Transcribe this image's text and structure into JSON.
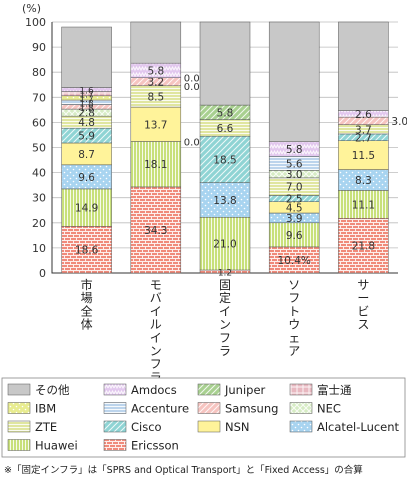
{
  "chart_data": {
    "type": "bar",
    "stacked": true,
    "ylabel": "(%)",
    "ylim": [
      0,
      100
    ],
    "yticks": [
      0,
      10,
      20,
      30,
      40,
      50,
      60,
      70,
      80,
      90,
      100
    ],
    "grid": true,
    "legend_position": "bottom",
    "categories": [
      "市場全体",
      "モバイルインフラ",
      "固定インフラ",
      "ソフトウェア",
      "サービス"
    ],
    "series": [
      {
        "name": "Ericsson",
        "color": "#f08a7a",
        "pattern": "brick",
        "values": [
          18.6,
          34.3,
          1.2,
          10.4,
          21.8
        ],
        "labels": [
          "18.6",
          "34.3",
          "1.2",
          "10.4%",
          "21.8"
        ]
      },
      {
        "name": "Huawei",
        "color": "#c8e07a",
        "pattern": "vlines",
        "values": [
          14.9,
          18.1,
          21.0,
          9.6,
          11.1
        ],
        "labels": [
          "14.9",
          "18.1",
          "21.0",
          "9.6",
          "11.1"
        ]
      },
      {
        "name": "Alcatel-Lucent",
        "color": "#a8d4f0",
        "pattern": "dots",
        "values": [
          9.6,
          0,
          13.8,
          3.9,
          8.3
        ],
        "labels": [
          "9.6",
          "0.0",
          "13.8",
          "3.9",
          "8.3"
        ]
      },
      {
        "name": "NSN",
        "color": "#fff39a",
        "pattern": "solid",
        "values": [
          8.7,
          13.7,
          0,
          4.5,
          11.5
        ],
        "labels": [
          "8.7",
          "13.7",
          "",
          "4.5",
          "11.5"
        ]
      },
      {
        "name": "Cisco",
        "color": "#8fd4d4",
        "pattern": "diag",
        "values": [
          5.9,
          0,
          18.5,
          2.5,
          2.7
        ],
        "labels": [
          "5.9",
          "",
          "18.5",
          "2.5",
          "2.7"
        ]
      },
      {
        "name": "ZTE",
        "color": "#e0e6a0",
        "pattern": "hlines",
        "values": [
          4.8,
          8.5,
          6.6,
          7.0,
          3.7
        ],
        "labels": [
          "4.8",
          "8.5",
          "6.6",
          "7.0",
          "3.7"
        ]
      },
      {
        "name": "NEC",
        "color": "#d6ecc4",
        "pattern": "lattice",
        "values": [
          2.8,
          0,
          0,
          3.0,
          0
        ],
        "labels": [
          "2.8",
          "0.0",
          "",
          "3.0",
          ""
        ]
      },
      {
        "name": "Samsung",
        "color": "#f6c4c0",
        "pattern": "diag",
        "values": [
          1.8,
          3.2,
          0,
          0,
          3.0
        ],
        "labels": [
          "1.8",
          "3.2",
          "",
          "",
          "3.0"
        ]
      },
      {
        "name": "Accenture",
        "color": "#bcd4ec",
        "pattern": "hlines",
        "values": [
          1.8,
          0,
          0,
          5.6,
          0
        ],
        "labels": [
          "1.8",
          "",
          "",
          "5.6",
          ""
        ]
      },
      {
        "name": "IBM",
        "color": "#e8ec90",
        "pattern": "dots",
        "values": [
          1.7,
          0,
          0,
          0,
          0
        ],
        "labels": [
          "1.7",
          "",
          "",
          "",
          ""
        ]
      },
      {
        "name": "富士通",
        "color": "#e8b8c0",
        "pattern": "grid",
        "values": [
          1.7,
          0,
          0,
          0,
          0
        ],
        "labels": [
          "1.7",
          "",
          "",
          "",
          ""
        ]
      },
      {
        "name": "Juniper",
        "color": "#a8d090",
        "pattern": "diag",
        "values": [
          0,
          0,
          5.8,
          0,
          0
        ],
        "labels": [
          "",
          "0.0",
          "5.8",
          "",
          ""
        ]
      },
      {
        "name": "Amdocs",
        "color": "#e2c8ee",
        "pattern": "zigzag",
        "values": [
          1.6,
          5.8,
          0,
          5.8,
          2.6
        ],
        "labels": [
          "1.6",
          "5.8",
          "",
          "5.8",
          "2.6"
        ]
      },
      {
        "name": "その他",
        "color": "#c8c8c8",
        "pattern": "solid",
        "values": [
          24.1,
          16.4,
          33.1,
          47.7,
          35.3
        ],
        "labels": [
          "",
          "",
          "",
          "",
          ""
        ]
      }
    ],
    "legend_order": [
      "その他",
      "Amdocs",
      "Juniper",
      "富士通",
      "IBM",
      "Accenture",
      "Samsung",
      "NEC",
      "ZTE",
      "Cisco",
      "NSN",
      "Alcatel-Lucent",
      "Huawei",
      "Ericsson"
    ],
    "footnote": "※「固定インフラ」は「SPRS and Optical Transport」と「Fixed Access」の合算"
  }
}
